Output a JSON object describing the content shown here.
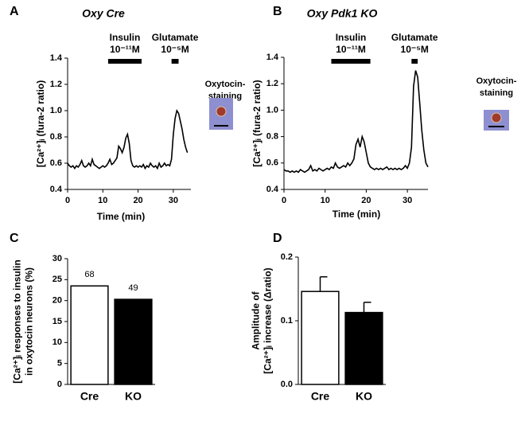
{
  "chart_data": [
    {
      "type": "line",
      "label": "A",
      "title": "Oxy Cre",
      "xlabel": "Time (min)",
      "ylabel": [
        "[Ca²⁺]ᵢ (fura-2 ratio)"
      ],
      "xlim": [
        0,
        35
      ],
      "xticks": [
        0,
        10,
        20,
        30
      ],
      "ylim": [
        0.4,
        1.4
      ],
      "yticks": [
        0.4,
        0.6,
        0.8,
        {
          "value": 1,
          "label": "1.0"
        },
        1.2,
        1.4
      ],
      "color": "#000000",
      "annotations": [
        {
          "text": "Insulin",
          "dose": "10⁻¹¹M",
          "start": 11.5,
          "end": 21
        },
        {
          "text": "Glutamate",
          "dose": "10⁻⁵M",
          "start": 29.5,
          "end": 31.5
        }
      ],
      "inset_label": [
        "Oxytocin-",
        "staining"
      ],
      "x": [
        0,
        0.5,
        1,
        1.5,
        2,
        2.5,
        3,
        3.5,
        4,
        4.5,
        5,
        5.5,
        6,
        6.5,
        7,
        7.5,
        8,
        8.5,
        9,
        9.5,
        10,
        10.5,
        11,
        11.5,
        12,
        12.5,
        13,
        13.5,
        14,
        14.5,
        15,
        15.5,
        16,
        16.5,
        17,
        17.5,
        18,
        18.5,
        19,
        19.5,
        20,
        20.5,
        21,
        21.5,
        22,
        22.5,
        23,
        23.5,
        24,
        24.5,
        25,
        25.5,
        26,
        26.5,
        27,
        27.5,
        28,
        28.5,
        29,
        29.5,
        30,
        30.5,
        31,
        31.5,
        32,
        32.5,
        33,
        33.5,
        34
      ],
      "values": [
        0.6,
        0.58,
        0.57,
        0.58,
        0.56,
        0.58,
        0.57,
        0.59,
        0.62,
        0.58,
        0.57,
        0.58,
        0.6,
        0.58,
        0.63,
        0.59,
        0.58,
        0.57,
        0.56,
        0.57,
        0.58,
        0.57,
        0.58,
        0.6,
        0.63,
        0.59,
        0.6,
        0.62,
        0.64,
        0.73,
        0.71,
        0.68,
        0.72,
        0.79,
        0.82,
        0.75,
        0.62,
        0.58,
        0.57,
        0.58,
        0.57,
        0.58,
        0.57,
        0.59,
        0.56,
        0.58,
        0.57,
        0.6,
        0.58,
        0.57,
        0.58,
        0.56,
        0.6,
        0.57,
        0.58,
        0.6,
        0.58,
        0.59,
        0.58,
        0.63,
        0.82,
        0.94,
        1.0,
        0.98,
        0.92,
        0.86,
        0.78,
        0.72,
        0.68
      ]
    },
    {
      "type": "line",
      "label": "B",
      "title": "Oxy Pdk1 KO",
      "xlabel": "Time (min)",
      "ylabel": [
        "[Ca²⁺]ᵢ (fura-2 ratio)"
      ],
      "xlim": [
        0,
        35
      ],
      "xticks": [
        0,
        10,
        20,
        30
      ],
      "ylim": [
        0.4,
        1.4
      ],
      "yticks": [
        0.4,
        0.6,
        0.8,
        {
          "value": 1,
          "label": "1.0"
        },
        1.2,
        1.4
      ],
      "color": "#000000",
      "annotations": [
        {
          "text": "Insulin",
          "dose": "10⁻¹¹M",
          "start": 11.5,
          "end": 21
        },
        {
          "text": "Glutamate",
          "dose": "10⁻⁵M",
          "start": 31,
          "end": 32.5
        }
      ],
      "inset_label": [
        "Oxytocin-",
        "staining"
      ],
      "x": [
        0,
        0.5,
        1,
        1.5,
        2,
        2.5,
        3,
        3.5,
        4,
        4.5,
        5,
        5.5,
        6,
        6.5,
        7,
        7.5,
        8,
        8.5,
        9,
        9.5,
        10,
        10.5,
        11,
        11.5,
        12,
        12.5,
        13,
        13.5,
        14,
        14.5,
        15,
        15.5,
        16,
        16.5,
        17,
        17.5,
        18,
        18.5,
        19,
        19.5,
        20,
        20.5,
        21,
        21.5,
        22,
        22.5,
        23,
        23.5,
        24,
        24.5,
        25,
        25.5,
        26,
        26.5,
        27,
        27.5,
        28,
        28.5,
        29,
        29.5,
        30,
        30.5,
        31,
        31.5,
        32,
        32.5,
        33,
        33.5,
        34,
        34.5,
        35
      ],
      "values": [
        0.55,
        0.54,
        0.54,
        0.53,
        0.54,
        0.53,
        0.54,
        0.53,
        0.55,
        0.54,
        0.53,
        0.54,
        0.55,
        0.58,
        0.54,
        0.55,
        0.54,
        0.56,
        0.55,
        0.54,
        0.55,
        0.56,
        0.55,
        0.57,
        0.56,
        0.6,
        0.57,
        0.56,
        0.57,
        0.58,
        0.57,
        0.6,
        0.58,
        0.6,
        0.63,
        0.74,
        0.78,
        0.72,
        0.8,
        0.76,
        0.68,
        0.6,
        0.57,
        0.56,
        0.55,
        0.56,
        0.55,
        0.56,
        0.55,
        0.56,
        0.57,
        0.55,
        0.56,
        0.55,
        0.56,
        0.55,
        0.56,
        0.55,
        0.56,
        0.58,
        0.56,
        0.6,
        0.72,
        1.18,
        1.3,
        1.25,
        1.05,
        0.85,
        0.7,
        0.6,
        0.57
      ]
    },
    {
      "type": "bar",
      "label": "C",
      "ylabel": [
        "[Ca²⁺]ᵢ responses to insulin",
        "in oxytocin neurons (%)"
      ],
      "categories": [
        "Cre",
        "KO"
      ],
      "values": [
        23.5,
        20.3
      ],
      "n": [
        68,
        49
      ],
      "colors": [
        "#ffffff",
        "#000000"
      ],
      "ylim": [
        0,
        30
      ],
      "yticks": [
        0,
        5,
        10,
        15,
        20,
        25,
        30
      ]
    },
    {
      "type": "bar",
      "label": "D",
      "ylabel": [
        "Amplitude of",
        "[Ca²⁺]ᵢ increase (Δratio)"
      ],
      "categories": [
        "Cre",
        "KO"
      ],
      "values": [
        0.146,
        0.113
      ],
      "errors": [
        0.023,
        0.016
      ],
      "colors": [
        "#ffffff",
        "#000000"
      ],
      "ylim": [
        0,
        0.2
      ],
      "yticks": [
        {
          "value": 0,
          "label": "0.0"
        },
        0.1,
        0.2
      ]
    }
  ]
}
